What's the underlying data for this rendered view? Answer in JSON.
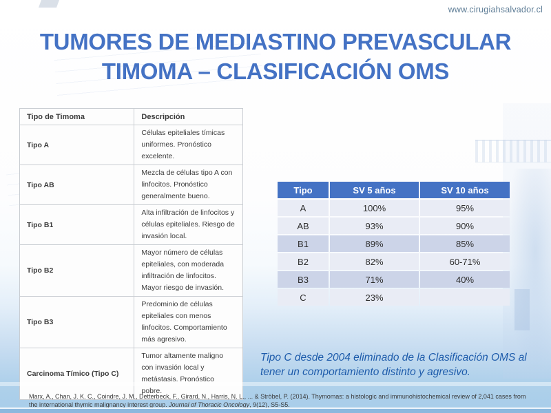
{
  "page": {
    "url": "www.cirugiahsalvador.cl",
    "title_line1": "TUMORES DE MEDIASTINO PREVASCULAR",
    "title_line2": "TIMOMA – CLASIFICACIÓN OMS"
  },
  "left_table": {
    "headers": [
      "Tipo de Timoma",
      "Descripción"
    ],
    "rows": [
      {
        "type": "Tipo A",
        "description": "Células epiteliales tímicas uniformes. Pronóstico excelente."
      },
      {
        "type": "Tipo AB",
        "description": "Mezcla de células tipo A con linfocitos. Pronóstico generalmente bueno."
      },
      {
        "type": "Tipo B1",
        "description": "Alta infiltración de linfocitos y células epiteliales. Riesgo de invasión local."
      },
      {
        "type": "Tipo B2",
        "description": "Mayor número de células epiteliales, con moderada infiltración de linfocitos. Mayor riesgo de invasión."
      },
      {
        "type": "Tipo B3",
        "description": "Predominio de células epiteliales con menos linfocitos. Comportamiento más agresivo."
      },
      {
        "type": "Carcinoma Tímico (Tipo C)",
        "description": "Tumor altamente maligno con invasión local y metástasis. Pronóstico pobre."
      }
    ]
  },
  "survival_table": {
    "headers": [
      "Tipo",
      "SV 5 años",
      "SV 10 años"
    ],
    "rows": [
      {
        "tipo": "A",
        "sv5": "100%",
        "sv10": "95%"
      },
      {
        "tipo": "AB",
        "sv5": "93%",
        "sv10": "90%"
      },
      {
        "tipo": "B1",
        "sv5": "89%",
        "sv10": "85%"
      },
      {
        "tipo": "B2",
        "sv5": "82%",
        "sv10": "60-71%"
      },
      {
        "tipo": "B3",
        "sv5": "71%",
        "sv10": "40%"
      },
      {
        "tipo": "C",
        "sv5": "23%",
        "sv10": ""
      }
    ]
  },
  "note": "Tipo C desde 2004 eliminado de la Clasificación OMS al tener un comportamiento distinto y agresivo.",
  "citation": {
    "part1": "Marx, A., Chan, J. K. C., Coindre, J. M., Detterbeck, F., Girard, N., Harris, N. L., ... & Ströbel, P. (2014). Thymomas: a histologic and immunohistochemical review of 2,041 cases from the international thymic malignancy interest group. ",
    "journal": "Journal of Thoracic Oncology",
    "part2": ", 9(12), S5-S5."
  },
  "colors": {
    "title_blue": "#4472c4",
    "table_header_blue": "#4472c4",
    "band_dark": "#ccd4e8",
    "band_light": "#e9ecf5",
    "note_blue": "#1e5cab",
    "url_gray_blue": "#5e7d96",
    "bottom_strip_blue": "#8cb8de"
  }
}
